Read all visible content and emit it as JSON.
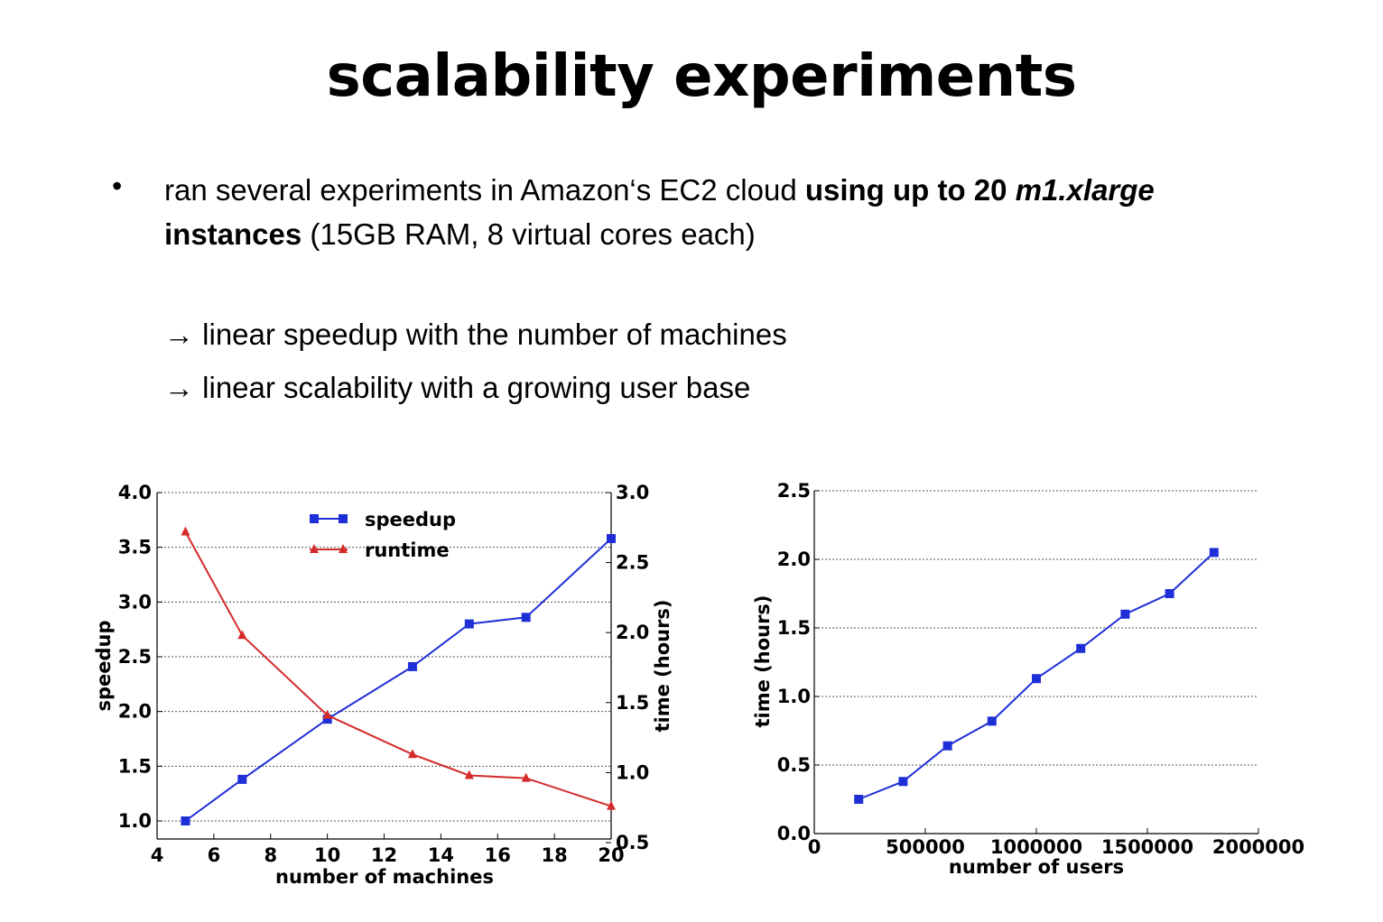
{
  "slide": {
    "title": "scalability experiments",
    "bullet": {
      "marker": "•",
      "text_1": "ran several experiments in Amazon‘s EC2 cloud ",
      "bold_1": "using up to 20 ",
      "bold_italic": "m1.xlarge",
      "bold_2": " instances",
      "text_2": " (15GB RAM, 8 virtual cores each)"
    },
    "arrow_1": "→ linear speedup with the number of machines",
    "arrow_2": "→ linear scalability with a growing user base"
  },
  "chart_data": [
    {
      "type": "line",
      "xlabel": "number of machines",
      "ylabel": "speedup",
      "y2label": "time (hours)",
      "xlim": [
        4,
        20
      ],
      "ylim": [
        1.0,
        4.0
      ],
      "y2lim": [
        0.5,
        3.0
      ],
      "xticks": [
        "4",
        "6",
        "8",
        "10",
        "12",
        "14",
        "16",
        "18",
        "20"
      ],
      "yticks": [
        "1.0",
        "1.5",
        "2.0",
        "2.5",
        "3.0",
        "3.5",
        "4.0"
      ],
      "y2ticks": [
        "0.5",
        "1.0",
        "1.5",
        "2.0",
        "2.5",
        "3.0"
      ],
      "grid": true,
      "legend": "top-center",
      "x": [
        5,
        7,
        10,
        13,
        15,
        17,
        20
      ],
      "series": [
        {
          "name": "speedup",
          "axis": "left",
          "color": "#1f2fd8",
          "marker": "square",
          "values": [
            1.0,
            1.38,
            1.93,
            2.41,
            2.8,
            2.86,
            3.58
          ]
        },
        {
          "name": "runtime",
          "axis": "right",
          "color": "#d42a2a",
          "marker": "triangle",
          "values": [
            2.72,
            1.98,
            1.41,
            1.13,
            0.98,
            0.96,
            0.76
          ]
        }
      ]
    },
    {
      "type": "line",
      "xlabel": "number of users",
      "ylabel": "time (hours)",
      "xlim": [
        0,
        2000000
      ],
      "ylim": [
        0.0,
        2.5
      ],
      "xticks": [
        "0",
        "500000",
        "1000000",
        "1500000",
        "2000000"
      ],
      "yticks": [
        "0.0",
        "0.5",
        "1.0",
        "1.5",
        "2.0",
        "2.5"
      ],
      "grid": true,
      "x": [
        200000,
        400000,
        600000,
        800000,
        1000000,
        1200000,
        1400000,
        1600000,
        1800000
      ],
      "series": [
        {
          "color": "#1f2fd8",
          "marker": "square",
          "values": [
            0.25,
            0.38,
            0.64,
            0.82,
            1.13,
            1.35,
            1.6,
            1.75,
            2.05
          ]
        }
      ]
    }
  ]
}
